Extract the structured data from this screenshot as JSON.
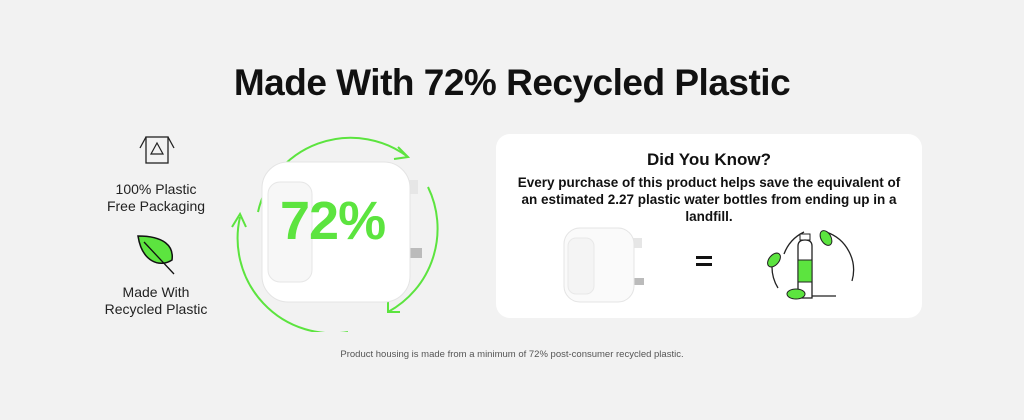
{
  "title": "Made With 72% Recycled Plastic",
  "features": [
    {
      "icon": "recycle-box-icon",
      "line1": "100% Plastic",
      "line2": "Free Packaging"
    },
    {
      "icon": "leaf-icon",
      "line1": "Made With",
      "line2": "Recycled Plastic"
    }
  ],
  "hero": {
    "percent": "72%"
  },
  "card": {
    "heading": "Did You Know?",
    "body": "Every purchase of this product helps save the equivalent of an estimated 2.27 plastic water bottles from ending up in a landfill."
  },
  "footnote": "Product housing is made from a minimum of 72% post-consumer recycled plastic.",
  "colors": {
    "accent": "#5ce43f",
    "background": "#f2f2f2"
  }
}
